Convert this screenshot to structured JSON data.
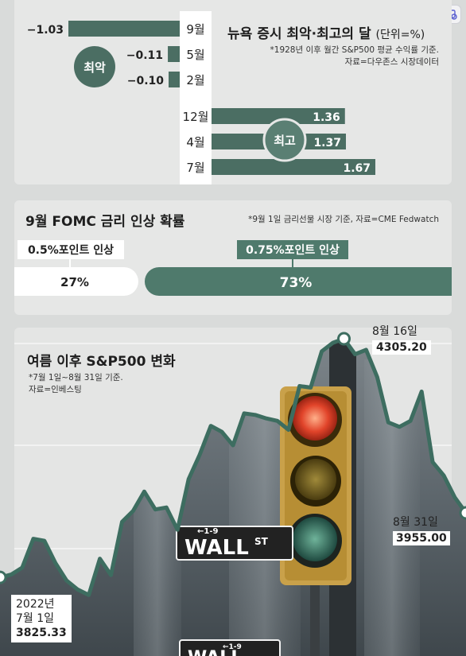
{
  "colors": {
    "bar": "#4b6e63",
    "label_bg": "#4f7a6c",
    "panel": "#e6e7e6",
    "line": "#3d6d60"
  },
  "panel1": {
    "title": "뉴욕 증시 최악·최고의 달",
    "unit": "(단위=%)",
    "note_line1": "*1928년 이후 월간 S&P500 평균 수익률 기준.",
    "note_line2": "자료=다우존스 시장데이터",
    "worst_label": "최악",
    "best_label": "최고",
    "chart_data": {
      "type": "bar",
      "categories": [
        "9월",
        "5월",
        "2월",
        "12월",
        "4월",
        "7월"
      ],
      "values": [
        -1.03,
        -0.11,
        -0.1,
        1.36,
        1.37,
        1.67
      ],
      "value_labels": [
        "−1.03",
        "−0.11",
        "−0.10",
        "1.36",
        "1.37",
        "1.67"
      ],
      "xlabel": "",
      "ylabel": "",
      "ylim": [
        -1.03,
        1.67
      ]
    }
  },
  "panel2": {
    "title": "9월 FOMC 금리 인상 확률",
    "note": "*9월 1일 금리선물 시장 기준, 자료=CME Fedwatch",
    "chart_data": {
      "type": "bar",
      "categories": [
        "0.5%포인트 인상",
        "0.75%포인트 인상"
      ],
      "values": [
        27,
        73
      ],
      "value_labels": [
        "27%",
        "73%"
      ]
    }
  },
  "panel3": {
    "title": "여름 이후 S&P500 변화",
    "note_line1": "*7월 1일~8월 31일 기준.",
    "note_line2": "자료=인베스팅",
    "start": {
      "date1": "2022년",
      "date2": "7월 1일",
      "value": "3825.33"
    },
    "peak": {
      "date": "8월 16일",
      "value": "4305.20"
    },
    "end": {
      "date": "8월 31일",
      "value": "3955.00"
    },
    "sign_main": "WALL",
    "sign_st": "ST",
    "sign_num": "←1-9",
    "chart_data": {
      "type": "line",
      "x": [
        "7/1",
        "7/5",
        "7/6",
        "7/7",
        "7/8",
        "7/11",
        "7/12",
        "7/13",
        "7/14",
        "7/15",
        "7/18",
        "7/19",
        "7/20",
        "7/21",
        "7/22",
        "7/25",
        "7/26",
        "7/27",
        "7/28",
        "7/29",
        "8/1",
        "8/2",
        "8/3",
        "8/4",
        "8/5",
        "8/8",
        "8/9",
        "8/10",
        "8/11",
        "8/12",
        "8/15",
        "8/16",
        "8/17",
        "8/18",
        "8/19",
        "8/22",
        "8/23",
        "8/24",
        "8/25",
        "8/26",
        "8/29",
        "8/30",
        "8/31"
      ],
      "values": [
        3825.33,
        3831,
        3845,
        3903,
        3899,
        3854,
        3819,
        3801,
        3790,
        3863,
        3830,
        3937,
        3959,
        3998,
        3962,
        3966,
        3921,
        4023,
        4072,
        4130,
        4118,
        4091,
        4155,
        4152,
        4145,
        4140,
        4122,
        4210,
        4207,
        4280,
        4297,
        4305.2,
        4274,
        4283,
        4228,
        4137,
        4128,
        4140,
        4199,
        4057,
        4030,
        3986,
        3955.0
      ],
      "ylim": [
        3700,
        4400
      ],
      "xlabel": "",
      "ylabel": ""
    }
  }
}
